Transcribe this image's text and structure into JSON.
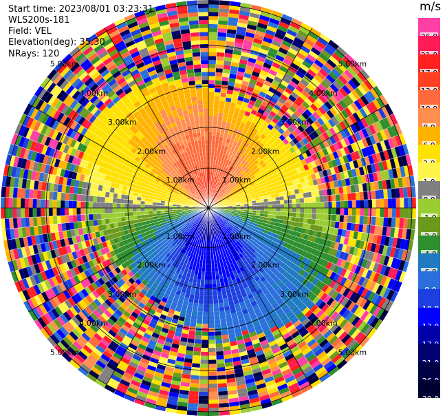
{
  "header": {
    "start_time": "Start time: 2023/08/01 03:23:31",
    "instrument": "WLS200s-181",
    "field": "Field: VEL",
    "elevation": "Elevation(deg): 35.30",
    "nrays": "NRays: 120"
  },
  "colorbar": {
    "unit": "m/s",
    "levels": [
      {
        "label": "26.0",
        "color": "#ff3fa6"
      },
      {
        "label": "21.0",
        "color": "#ff1b58"
      },
      {
        "label": "17.0",
        "color": "#ff2020"
      },
      {
        "label": "13.0",
        "color": "#ff4020"
      },
      {
        "label": "10.0",
        "color": "#ff6a3a"
      },
      {
        "label": "8.0",
        "color": "#ff8f4f"
      },
      {
        "label": "6.0",
        "color": "#ffb300"
      },
      {
        "label": "2.0",
        "color": "#ffe100"
      },
      {
        "label": "1.0",
        "color": "#fff54a"
      },
      {
        "label": "0.0",
        "color": "#808080"
      },
      {
        "label": "-1.0",
        "color": "#9acd32"
      },
      {
        "label": "-2.0",
        "color": "#6b9a1e"
      },
      {
        "label": "-4.0",
        "color": "#2f8f2f"
      },
      {
        "label": "-6.0",
        "color": "#1f7ac0"
      },
      {
        "label": "-8.0",
        "color": "#2a6fdb"
      },
      {
        "label": "-10.0",
        "color": "#1d3fe0"
      },
      {
        "label": "-13.0",
        "color": "#0000ff"
      },
      {
        "label": "-17.0",
        "color": "#0000a8"
      },
      {
        "label": "-21.0",
        "color": "#000070"
      },
      {
        "label": "-26.0",
        "color": "#000045"
      },
      {
        "label": "-30.0",
        "color": "#000030"
      }
    ]
  },
  "ring_labels": [
    "1.00km",
    "2.00km",
    "3.00km",
    "4.00km",
    "5.00km"
  ]
}
